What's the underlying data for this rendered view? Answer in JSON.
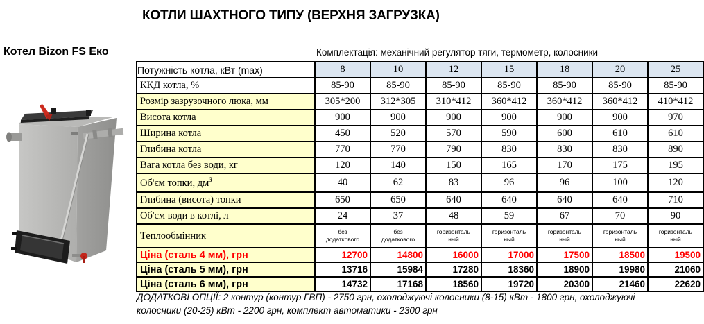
{
  "title": "КОТЛИ ШАХТНОГО ТИПУ (ВЕРХНЯ ЗАГРУЗКА)",
  "subtitle": "Комплектація: механічний регулятор тяги, термометр, колосники",
  "product": {
    "name": "Котел Bizon FS Еко"
  },
  "colors": {
    "header_bg": "#dce6f1",
    "label_bg": "#ffffcc",
    "price_red": "#ff0000"
  },
  "table": {
    "header": {
      "label": "Потужність котла, кВт (max)",
      "values": [
        "8",
        "10",
        "12",
        "15",
        "18",
        "20",
        "25"
      ]
    },
    "rows": [
      {
        "label": "ККД котла, %",
        "type": "plain",
        "values": [
          "85-90",
          "85-90",
          "85-90",
          "85-90",
          "85-90",
          "85-90",
          "85-90"
        ]
      },
      {
        "label": "Розмір зазрузочного люка, мм",
        "type": "dim",
        "values": [
          "305*200",
          "312*305",
          "310*412",
          "360*412",
          "360*412",
          "360*412",
          "410*412"
        ]
      },
      {
        "label": "Висота котла",
        "type": "dim",
        "values": [
          "900",
          "900",
          "900",
          "900",
          "900",
          "900",
          "970"
        ]
      },
      {
        "label": "Ширина котла",
        "type": "dim",
        "values": [
          "450",
          "520",
          "570",
          "590",
          "600",
          "610",
          "610"
        ]
      },
      {
        "label": "Глибина котла",
        "type": "dim",
        "values": [
          "770",
          "770",
          "790",
          "830",
          "830",
          "830",
          "890"
        ]
      },
      {
        "label": "Вага котла без води, кг",
        "type": "dim",
        "values": [
          "120",
          "140",
          "150",
          "165",
          "170",
          "175",
          "195"
        ]
      },
      {
        "label": "Об'єм топки, дм",
        "sup": "3",
        "type": "dim",
        "tall": true,
        "values": [
          "40",
          "62",
          "83",
          "96",
          "96",
          "100",
          "120"
        ]
      },
      {
        "label": "Глибина (висота) топки",
        "type": "dim",
        "values": [
          "650",
          "650",
          "640",
          "640",
          "640",
          "640",
          "710"
        ]
      },
      {
        "label": "Об'см води в котлі, л",
        "type": "dim",
        "values": [
          "24",
          "37",
          "48",
          "59",
          "67",
          "70",
          "90"
        ]
      },
      {
        "label": "Теплообмінник",
        "type": "exchanger",
        "values": [
          "без\nдодаткового",
          "без\nдодаткового",
          "горизонталь\nный",
          "горизонталь\nный",
          "горизонталь\nный",
          "горизонталь\nный",
          "горизонталь\nный"
        ]
      },
      {
        "label": "Ціна (сталь 4 мм), грн",
        "type": "price-red",
        "values": [
          "12700",
          "14800",
          "16000",
          "17000",
          "17500",
          "18500",
          "19500"
        ]
      },
      {
        "label": "Ціна (сталь 5 мм), грн",
        "type": "price",
        "values": [
          "13716",
          "15984",
          "17280",
          "18360",
          "18900",
          "19980",
          "21060"
        ]
      },
      {
        "label": "Ціна (сталь 6 мм), грн",
        "type": "price",
        "values": [
          "14732",
          "17168",
          "18560",
          "19720",
          "20300",
          "21460",
          "22620"
        ]
      }
    ]
  },
  "footnote": "ДОДАТКОВІ ОПЦІЇ: 2 контур (контур ГВП) - 2750 грн, охолоджуючі колосники (8-15) кВт - 1800 грн, охолоджуючі\nколосники (20-25) кВт - 2200 грн, комплект автоматики - 2300 грн"
}
